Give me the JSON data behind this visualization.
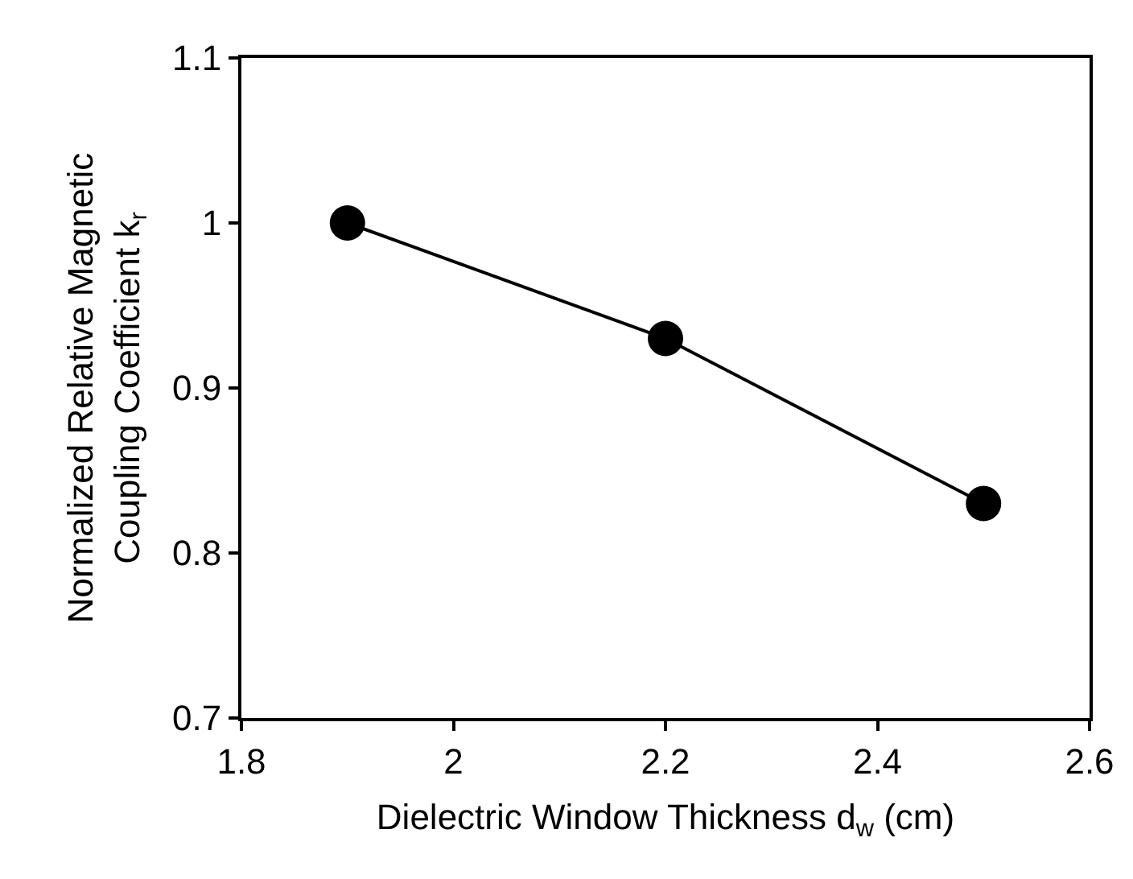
{
  "chart_data": {
    "type": "line",
    "xlabel": "Dielectric Window Thickness d$_{w}$ (cm)",
    "ylabel": "Normalized Relative Magnetic\nCoupling Coefficient k$_{r}$",
    "x": [
      1.9,
      2.2,
      2.5
    ],
    "series": [
      {
        "color": "#000000",
        "values": [
          1.0,
          0.93,
          0.83
        ]
      }
    ],
    "xlim": [
      1.8,
      2.6
    ],
    "xticks": [
      1.8,
      2,
      2.2,
      2.4,
      2.6
    ],
    "ylim": [
      0.7,
      1.1
    ],
    "yticks": [
      0.7,
      0.8,
      0.9,
      1,
      1.1
    ],
    "legend": false,
    "marker": "circle",
    "line_style": "solid"
  }
}
